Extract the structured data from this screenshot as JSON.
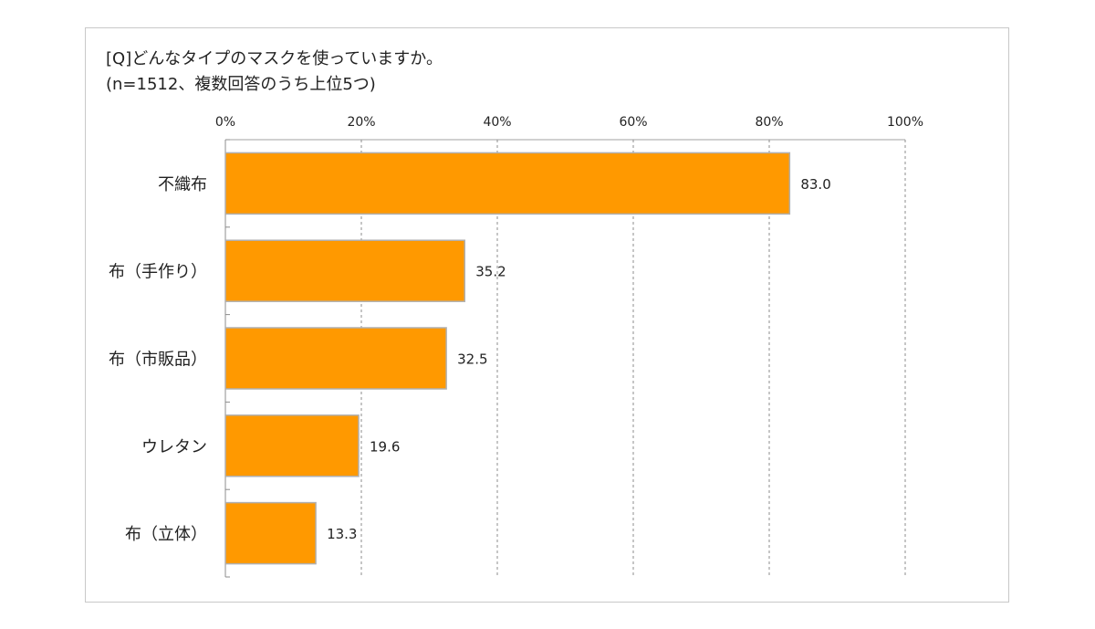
{
  "question": "[Q]どんなタイプのマスクを使っていますか。",
  "subtitle": "(n=1512、複数回答のうち上位5つ)",
  "chart_data": {
    "type": "bar",
    "orientation": "horizontal",
    "categories": [
      "不織布",
      "布（手作り）",
      "布（市販品）",
      "ウレタン",
      "布（立体）"
    ],
    "values": [
      83.0,
      35.2,
      32.5,
      19.6,
      13.3
    ],
    "value_labels": [
      "83.0",
      "35.2",
      "32.5",
      "19.6",
      "13.3"
    ],
    "x_ticks": [
      "0%",
      "20%",
      "40%",
      "60%",
      "80%",
      "100%"
    ],
    "xlim": [
      0,
      100
    ],
    "grid": "vertical dashed",
    "bar_color": "#FF9900",
    "bar_border_color": "#b0b0b0"
  }
}
